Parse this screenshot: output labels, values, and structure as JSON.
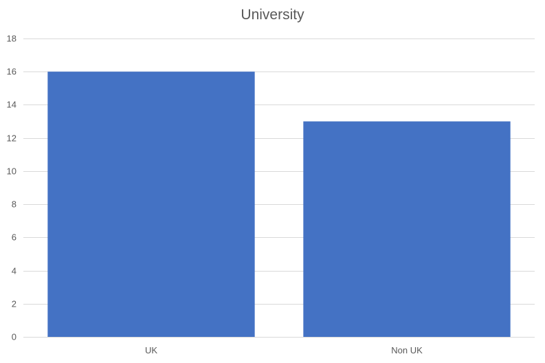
{
  "chart_data": {
    "type": "bar",
    "title": "University",
    "xlabel": "",
    "ylabel": "",
    "categories": [
      "UK",
      "Non UK"
    ],
    "values": [
      16,
      13
    ],
    "ylim": [
      0,
      18
    ],
    "yticks": [
      0,
      2,
      4,
      6,
      8,
      10,
      12,
      14,
      16,
      18
    ],
    "grid": true,
    "legend": "none",
    "bar_color": "#4472C4"
  }
}
